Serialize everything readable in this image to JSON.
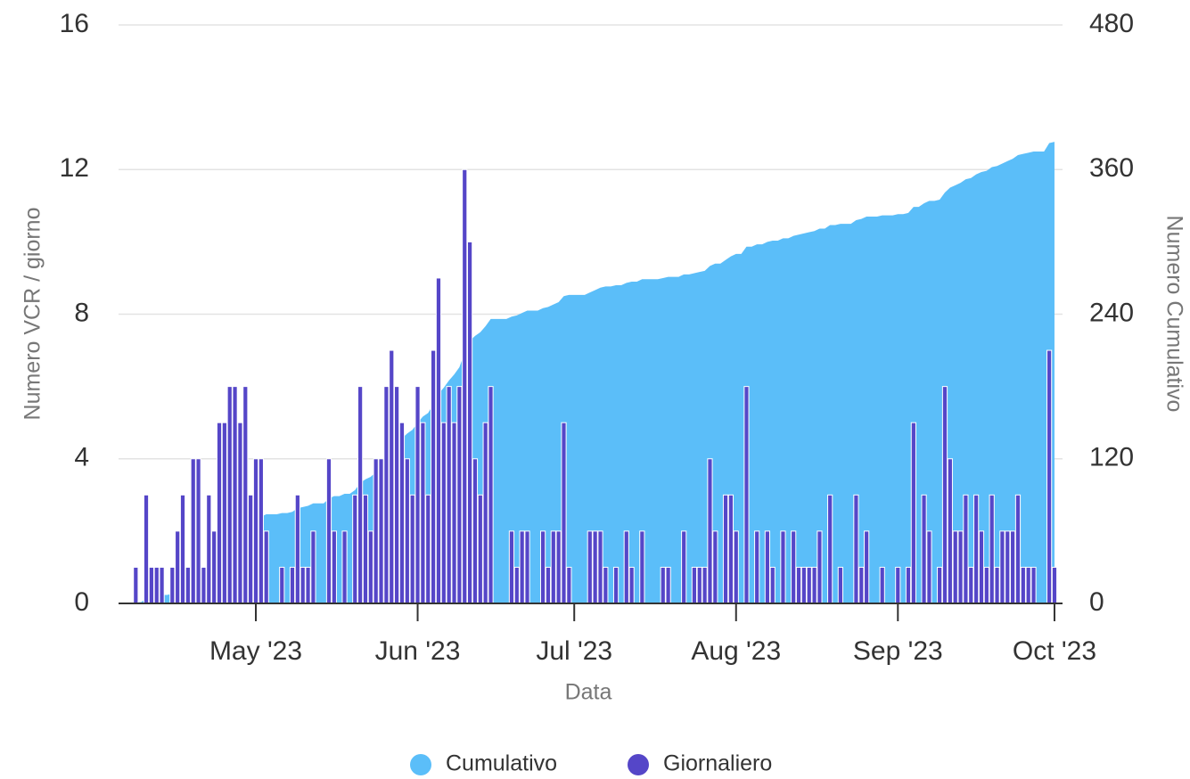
{
  "chart_data": {
    "type": "combo",
    "x_label": "Data",
    "y_label": "Numero VCR / giorno",
    "y2_label": "Numero Cumulativo",
    "categories": [
      null,
      null,
      null,
      null,
      null,
      null,
      null,
      null,
      null,
      null,
      null,
      null,
      null,
      null,
      null,
      null,
      null,
      null,
      null,
      null,
      null,
      null,
      null,
      null,
      null,
      "May '23",
      null,
      null,
      null,
      null,
      null,
      null,
      null,
      null,
      null,
      null,
      null,
      null,
      null,
      null,
      null,
      null,
      null,
      null,
      null,
      null,
      null,
      null,
      null,
      null,
      null,
      null,
      null,
      null,
      null,
      null,
      "Jun '23",
      null,
      null,
      null,
      null,
      null,
      null,
      null,
      null,
      null,
      null,
      null,
      null,
      null,
      null,
      null,
      null,
      null,
      null,
      null,
      null,
      null,
      null,
      null,
      null,
      null,
      null,
      null,
      null,
      null,
      "Jul '23",
      null,
      null,
      null,
      null,
      null,
      null,
      null,
      null,
      null,
      null,
      null,
      null,
      null,
      null,
      null,
      null,
      null,
      null,
      null,
      null,
      null,
      null,
      null,
      null,
      null,
      null,
      null,
      null,
      null,
      null,
      "Aug '23",
      null,
      null,
      null,
      null,
      null,
      null,
      null,
      null,
      null,
      null,
      null,
      null,
      null,
      null,
      null,
      null,
      null,
      null,
      null,
      null,
      null,
      null,
      null,
      null,
      null,
      null,
      null,
      null,
      null,
      null,
      "Sep '23",
      null,
      null,
      null,
      null,
      null,
      null,
      null,
      null,
      null,
      null,
      null,
      null,
      null,
      null,
      null,
      null,
      null,
      null,
      null,
      null,
      null,
      null,
      null,
      null,
      null,
      null,
      null,
      null,
      null,
      "Oct '23"
    ],
    "series": [
      {
        "name": "Cumulativo",
        "type": "area",
        "axis": "y2",
        "color": "#5bbef9",
        "values": [
          0,
          0,
          1,
          1,
          4,
          5,
          6,
          7,
          7,
          8,
          10,
          13,
          14,
          18,
          22,
          23,
          26,
          28,
          33,
          38,
          44,
          50,
          55,
          61,
          64,
          68,
          72,
          74,
          74,
          74,
          75,
          75,
          76,
          79,
          80,
          81,
          83,
          83,
          83,
          87,
          89,
          89,
          91,
          91,
          94,
          100,
          103,
          105,
          109,
          113,
          119,
          126,
          132,
          137,
          141,
          144,
          150,
          155,
          158,
          165,
          174,
          179,
          185,
          190,
          196,
          208,
          218,
          222,
          225,
          230,
          236,
          236,
          236,
          236,
          238,
          239,
          241,
          243,
          243,
          243,
          245,
          246,
          248,
          250,
          255,
          256,
          256,
          256,
          256,
          258,
          260,
          262,
          263,
          263,
          264,
          264,
          266,
          267,
          267,
          269,
          269,
          269,
          269,
          270,
          271,
          271,
          271,
          273,
          273,
          274,
          275,
          276,
          280,
          282,
          282,
          285,
          288,
          290,
          290,
          296,
          296,
          298,
          298,
          300,
          301,
          301,
          303,
          303,
          305,
          306,
          307,
          308,
          309,
          311,
          311,
          314,
          314,
          315,
          315,
          315,
          318,
          319,
          321,
          321,
          321,
          322,
          322,
          322,
          323,
          323,
          324,
          329,
          329,
          332,
          334,
          334,
          335,
          341,
          345,
          347,
          349,
          352,
          353,
          356,
          358,
          359,
          362,
          363,
          365,
          367,
          369,
          372,
          373,
          374,
          375,
          375,
          375,
          382,
          383
        ]
      },
      {
        "name": "Giornaliero",
        "type": "bar",
        "color": "#5546c8",
        "values": [
          0,
          0,
          1,
          0,
          3,
          1,
          1,
          1,
          0,
          1,
          2,
          3,
          1,
          4,
          4,
          1,
          3,
          2,
          5,
          5,
          6,
          6,
          5,
          6,
          3,
          4,
          4,
          2,
          0,
          0,
          1,
          0,
          1,
          3,
          1,
          1,
          2,
          0,
          0,
          4,
          2,
          0,
          2,
          0,
          3,
          6,
          3,
          2,
          4,
          4,
          6,
          7,
          6,
          5,
          4,
          3,
          6,
          5,
          3,
          7,
          9,
          5,
          6,
          5,
          6,
          12,
          10,
          4,
          3,
          5,
          6,
          0,
          0,
          0,
          2,
          1,
          2,
          2,
          0,
          0,
          2,
          1,
          2,
          2,
          5,
          1,
          0,
          0,
          0,
          2,
          2,
          2,
          1,
          0,
          1,
          0,
          2,
          1,
          0,
          2,
          0,
          0,
          0,
          1,
          1,
          0,
          0,
          2,
          0,
          1,
          1,
          1,
          4,
          2,
          0,
          3,
          3,
          2,
          0,
          6,
          0,
          2,
          0,
          2,
          1,
          0,
          2,
          0,
          2,
          1,
          1,
          1,
          1,
          2,
          0,
          3,
          0,
          1,
          0,
          0,
          3,
          1,
          2,
          0,
          0,
          1,
          0,
          0,
          1,
          0,
          1,
          5,
          0,
          3,
          2,
          0,
          1,
          6,
          4,
          2,
          2,
          3,
          1,
          3,
          2,
          1,
          3,
          1,
          2,
          2,
          2,
          3,
          1,
          1,
          1,
          0,
          0,
          7,
          1
        ]
      }
    ],
    "ylim": [
      0,
      16
    ],
    "yticks": [
      0,
      4,
      8,
      12,
      16
    ],
    "y2lim": [
      0,
      480
    ],
    "y2ticks": [
      0,
      120,
      240,
      360,
      480
    ],
    "grid": true,
    "legend": "bottom"
  }
}
